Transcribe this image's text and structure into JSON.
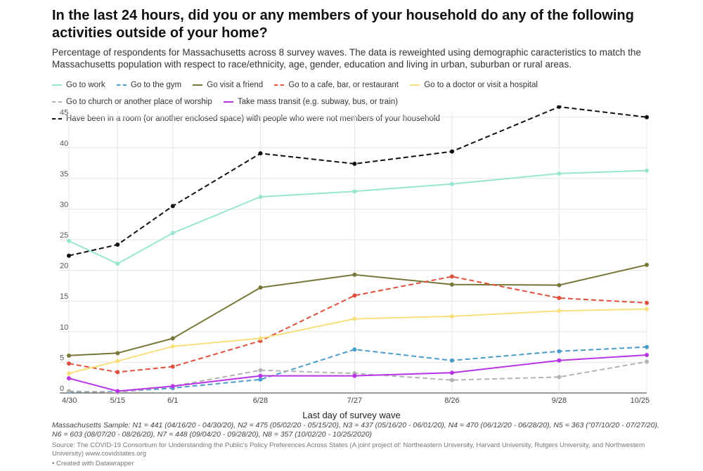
{
  "title": "In the last 24 hours, did you or any members of your household do any of the following activities outside of your home?",
  "subtitle": "Percentage of respondents for Massachusetts across 8 survey waves. The data is reweighted using demographic caracteristics to match the Massachusetts population with respect to race/ethnicity, age, gender, education and living in urban, suburban or rural areas.",
  "notes": "Massachusetts Sample: N1 = 441 (04/16/20 - 04/30/20), N2 = 475 (05/02/20 - 05/15/20), N3 = 437 (05/16/20 - 06/01/20), N4 = 470 (06/12/20 - 06/28/20), N5 = 363 (\"07/10/20 - 07/27/20), N6 = 603 (08/07/20 - 08/26/20), N7 = 448 (09/04/20 - 09/28/20), N8 = 357 (10/02/20 - 10/25/2020)",
  "source": "Source: The COVID-19 Consortium for Understanding the Public's Policy Preferences Across States (A joint project of: Northeastern University, Harvard University, Rutgers University, and Northwestern University) www.covidstates.org",
  "credit": "• Created with Datawrapper",
  "chart_data": {
    "type": "line",
    "title": "In the last 24 hours, did you or any members of your household do any of the following activities outside of your home?",
    "xlabel": "Last day of survey wave",
    "ylabel": "",
    "ylim": [
      0,
      46
    ],
    "yticks": [
      0,
      5,
      10,
      15,
      20,
      25,
      30,
      35,
      40,
      45
    ],
    "grid": true,
    "legend": "top",
    "x_days": [
      0,
      15,
      32,
      59,
      88,
      118,
      151,
      178
    ],
    "categories": [
      "4/30",
      "5/15",
      "6/1",
      "6/28",
      "7/27",
      "8/26",
      "9/28",
      "10/25"
    ],
    "series": [
      {
        "name": "Go to work",
        "color": "#98e5d2",
        "dash": false,
        "values": [
          24.8,
          21.1,
          26.1,
          32.0,
          32.9,
          34.1,
          35.8,
          36.3
        ]
      },
      {
        "name": "Go to the gym",
        "color": "#4a9cc9",
        "dash": true,
        "values": [
          0.2,
          0.2,
          0.8,
          2.2,
          7.1,
          5.3,
          6.8,
          7.5
        ]
      },
      {
        "name": "Go visit a friend",
        "color": "#777738",
        "dash": false,
        "values": [
          6.1,
          6.5,
          8.9,
          17.2,
          19.3,
          17.7,
          17.6,
          20.9
        ]
      },
      {
        "name": "Go to a cafe, bar, or restaurant",
        "color": "#e0503e",
        "dash": true,
        "values": [
          4.8,
          3.4,
          4.3,
          8.5,
          15.9,
          19.0,
          15.5,
          14.7
        ]
      },
      {
        "name": "Go to a doctor or visit a hospital",
        "color": "#f7df7c",
        "dash": false,
        "values": [
          3.2,
          5.2,
          7.6,
          8.9,
          12.1,
          12.5,
          13.4,
          13.7
        ]
      },
      {
        "name": "Go to church or another place of worship",
        "color": "#b3b3b3",
        "dash": true,
        "values": [
          0.3,
          0.1,
          1.1,
          3.7,
          3.2,
          2.1,
          2.6,
          5.1
        ]
      },
      {
        "name": "Take mass transit (e.g. subway, bus, or train)",
        "color": "#b735e6",
        "dash": false,
        "values": [
          2.4,
          0.3,
          1.1,
          2.8,
          2.8,
          3.3,
          5.3,
          6.2
        ]
      },
      {
        "name": "Have been in a room (or another enclosed space) with people who were not members of your household",
        "color": "#111111",
        "dash": true,
        "values": [
          22.4,
          24.2,
          30.5,
          39.1,
          37.4,
          39.4,
          46.7,
          45.0
        ]
      }
    ]
  }
}
